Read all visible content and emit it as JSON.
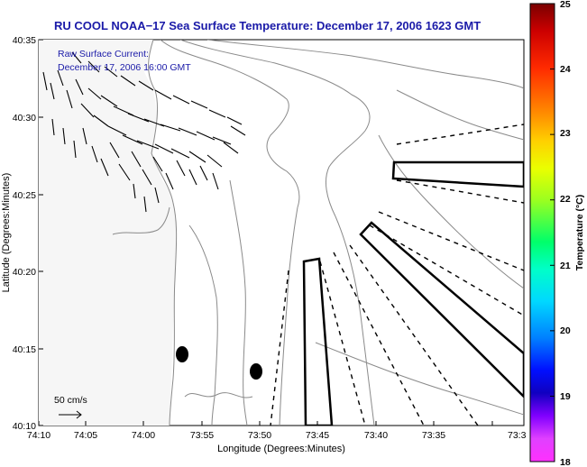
{
  "title": "RU COOL  NOAA−17  Sea Surface Temperature:  December 17, 2006 1623 GMT",
  "annotation": {
    "line1": "Raw Surface Current:",
    "line2": "December 17, 2006 16:00 GMT"
  },
  "scale": {
    "label": "50 cm/s"
  },
  "axes": {
    "xlabel": "Longitude (Degrees:Minutes)",
    "ylabel": "Latitude (Degrees:Minutes)",
    "xticks": [
      "74:10",
      "74:05",
      "74:00",
      "73:55",
      "73:50",
      "73:45",
      "73:40",
      "73:35",
      "73:3"
    ],
    "yticks": [
      "40:35",
      "40:30",
      "40:25",
      "40:20",
      "40:15",
      "40:10"
    ]
  },
  "colorbar": {
    "label": "Temperature (°C)",
    "ticks": [
      "25",
      "24",
      "23",
      "22",
      "21",
      "20",
      "19",
      "18"
    ],
    "min": 18,
    "max": 25
  },
  "colors": {
    "title": "#1a1aa8",
    "contour": "#8a8a8a",
    "vector": "#000000"
  }
}
